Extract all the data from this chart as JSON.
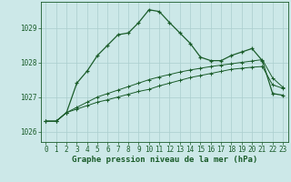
{
  "title": "Graphe pression niveau de la mer (hPa)",
  "bg_color": "#cce8e8",
  "grid_color": "#aacece",
  "line_color": "#1a5c2a",
  "xlim": [
    -0.5,
    23.5
  ],
  "ylim": [
    1025.7,
    1029.75
  ],
  "yticks": [
    1026,
    1027,
    1028,
    1029
  ],
  "xticks": [
    0,
    1,
    2,
    3,
    4,
    5,
    6,
    7,
    8,
    9,
    10,
    11,
    12,
    13,
    14,
    15,
    16,
    17,
    18,
    19,
    20,
    21,
    22,
    23
  ],
  "series1": [
    1026.3,
    1026.3,
    1026.55,
    1027.4,
    1027.75,
    1028.2,
    1028.5,
    1028.8,
    1028.85,
    1029.15,
    1029.52,
    1029.47,
    1029.15,
    1028.85,
    1028.55,
    1028.15,
    1028.05,
    1028.05,
    1028.2,
    1028.3,
    1028.4,
    1028.05,
    1027.1,
    1027.05
  ],
  "series2": [
    1026.3,
    1026.3,
    1026.55,
    1026.65,
    1026.75,
    1026.85,
    1026.92,
    1027.0,
    1027.08,
    1027.16,
    1027.22,
    1027.32,
    1027.4,
    1027.48,
    1027.56,
    1027.62,
    1027.68,
    1027.74,
    1027.8,
    1027.83,
    1027.86,
    1027.88,
    1027.35,
    1027.25
  ],
  "series3": [
    1026.3,
    1026.3,
    1026.55,
    1026.7,
    1026.85,
    1027.0,
    1027.1,
    1027.2,
    1027.3,
    1027.4,
    1027.5,
    1027.58,
    1027.65,
    1027.72,
    1027.78,
    1027.83,
    1027.88,
    1027.92,
    1027.96,
    1028.0,
    1028.04,
    1028.08,
    1027.55,
    1027.28
  ],
  "tick_fontsize": 5.5,
  "title_fontsize": 6.5
}
